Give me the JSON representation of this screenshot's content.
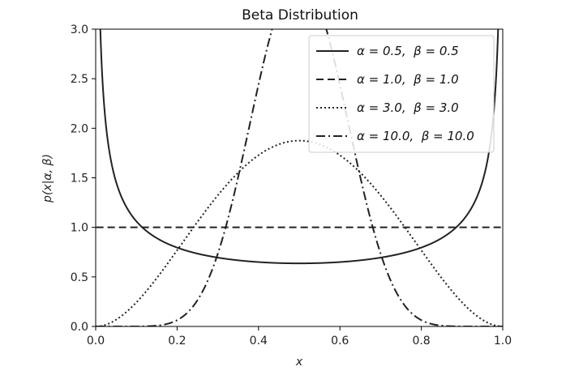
{
  "chart_data": {
    "type": "line",
    "title": "Beta Distribution",
    "xlabel": "x",
    "ylabel": "p(x|α, β)",
    "xlim": [
      0.0,
      1.0
    ],
    "ylim": [
      0.0,
      3.0
    ],
    "x_ticks": [
      "0.0",
      "0.2",
      "0.4",
      "0.6",
      "0.8",
      "1.0"
    ],
    "y_ticks": [
      "0.0",
      "0.5",
      "1.0",
      "1.5",
      "2.0",
      "2.5",
      "3.0"
    ],
    "grid": false,
    "legend_position": "top-right",
    "series": [
      {
        "name": "α = 0.5,  β = 0.5",
        "alpha": 0.5,
        "beta": 0.5,
        "style": "solid",
        "color": "#222222"
      },
      {
        "name": "α = 1.0,  β = 1.0",
        "alpha": 1.0,
        "beta": 1.0,
        "style": "dashed",
        "color": "#222222"
      },
      {
        "name": "α = 3.0,  β = 3.0",
        "alpha": 3.0,
        "beta": 3.0,
        "style": "dotted",
        "color": "#222222"
      },
      {
        "name": "α = 10.0,  β = 10.0",
        "alpha": 10.0,
        "beta": 10.0,
        "style": "dashdot",
        "color": "#222222"
      }
    ]
  }
}
